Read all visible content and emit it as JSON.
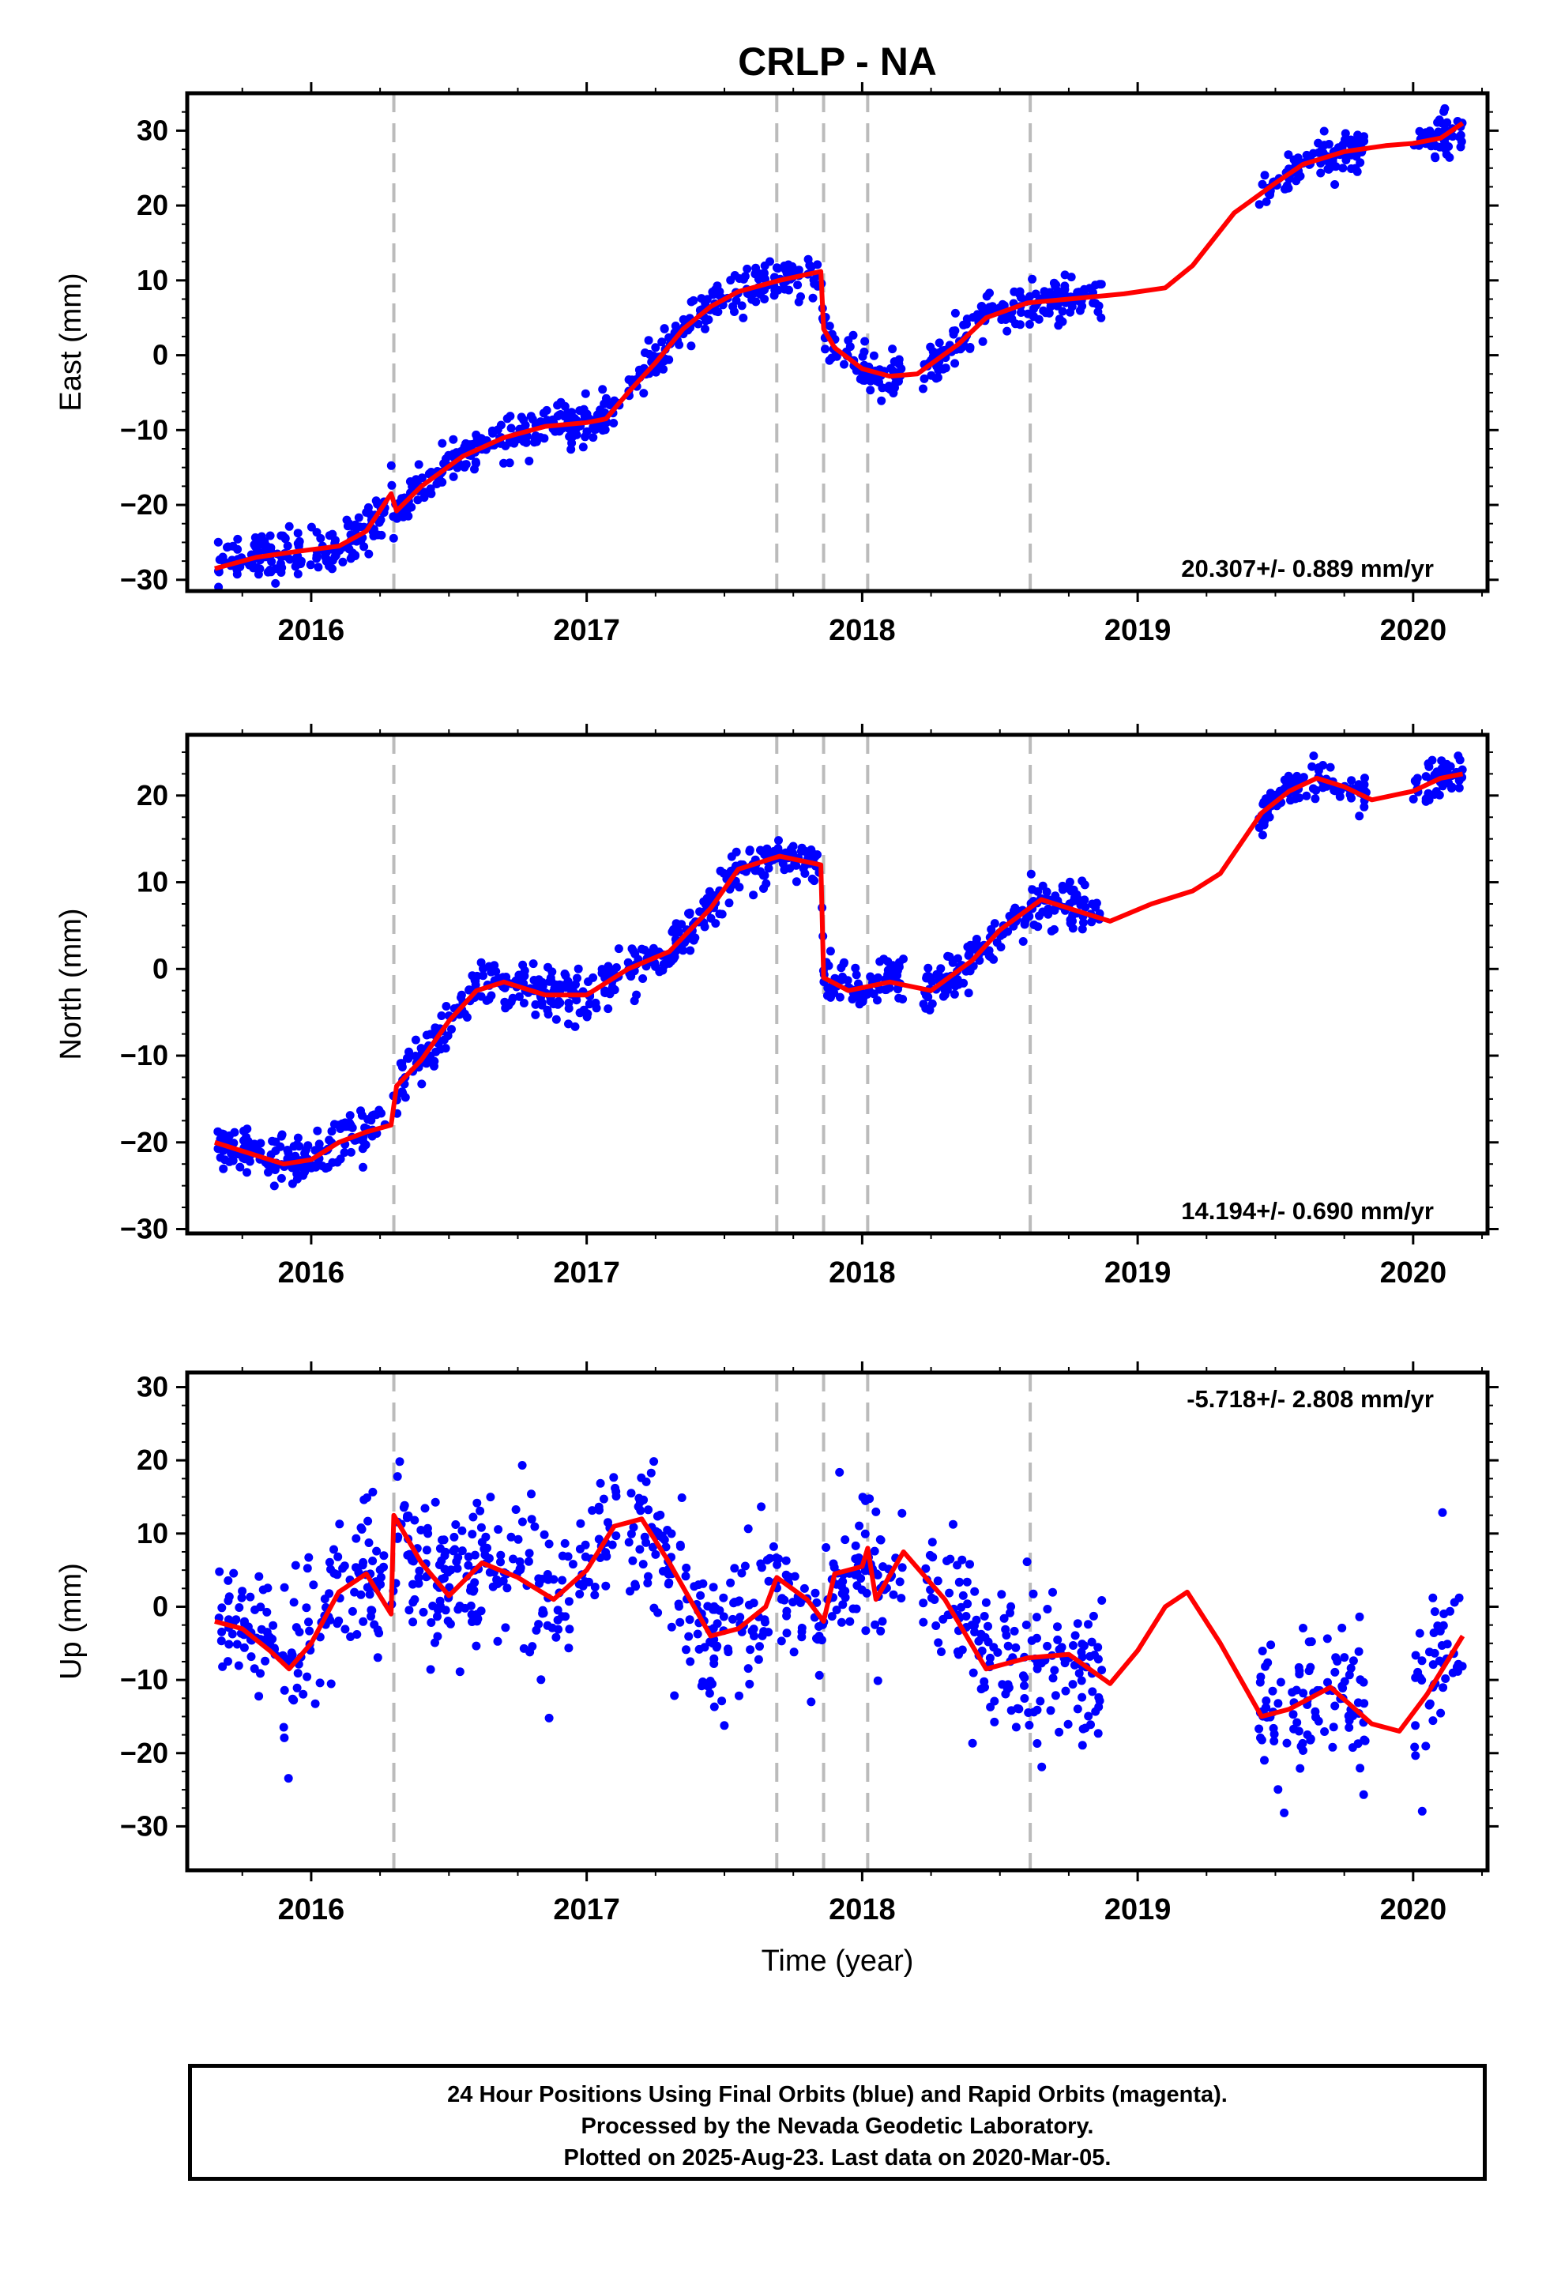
{
  "title": "CRLP - NA",
  "colors": {
    "data_points": "#0000ff",
    "model_line": "#ff0000",
    "event_lines": "#bbbbbb",
    "axis": "#000000"
  },
  "footer": {
    "line1": "24 Hour Positions Using Final Orbits (blue) and Rapid Orbits (magenta).",
    "line2": "Processed by the Nevada Geodetic Laboratory.",
    "line3": "Plotted on 2025-Aug-23. Last data on 2020-Mar-05."
  },
  "chart_data": [
    {
      "type": "scatter",
      "component": "East",
      "ylabel": "East (mm)",
      "xlabel": "",
      "xlim": [
        2015.55,
        2020.27
      ],
      "ylim": [
        -31.5,
        35
      ],
      "xticks": [
        "2016",
        "2017",
        "2018",
        "2019",
        "2020"
      ],
      "yticks": [
        -30,
        -20,
        -10,
        0,
        10,
        20,
        30
      ],
      "rate_label": "20.307+/- 0.889 mm/yr",
      "rate_label_position": "bottom-right",
      "event_lines_x": [
        2016.3,
        2017.69,
        2017.86,
        2018.02,
        2018.61
      ],
      "data_segments": [
        {
          "x": [
            2015.66,
            2016.27
          ],
          "amp": 1.6
        },
        {
          "x": [
            2016.29,
            2017.12
          ],
          "amp": 1.4
        },
        {
          "x": [
            2017.15,
            2017.86
          ],
          "amp": 1.3
        },
        {
          "x": [
            2017.86,
            2018.15
          ],
          "amp": 1.5
        },
        {
          "x": [
            2018.22,
            2018.87
          ],
          "amp": 1.4
        },
        {
          "x": [
            2019.44,
            2019.83
          ],
          "amp": 1.4
        },
        {
          "x": [
            2020.0,
            2020.18
          ],
          "amp": 1.5
        }
      ],
      "model": {
        "x": [
          2015.65,
          2015.8,
          2015.95,
          2016.1,
          2016.2,
          2016.29,
          2016.31,
          2016.4,
          2016.55,
          2016.7,
          2016.85,
          2017.0,
          2017.07,
          2017.15,
          2017.25,
          2017.35,
          2017.45,
          2017.55,
          2017.7,
          2017.85,
          2017.86,
          2017.9,
          2018.0,
          2018.1,
          2018.2,
          2018.35,
          2018.45,
          2018.6,
          2018.75,
          2018.95,
          2019.1,
          2019.2,
          2019.35,
          2019.5,
          2019.6,
          2019.75,
          2019.9,
          2020.0,
          2020.1,
          2020.18
        ],
        "y": [
          -28.5,
          -27,
          -26.2,
          -25.5,
          -23.5,
          -18.5,
          -20.8,
          -17.5,
          -13.5,
          -11,
          -9.5,
          -9,
          -8.5,
          -5,
          -1,
          3.5,
          6.5,
          8.5,
          10,
          11.2,
          3.5,
          1,
          -1.8,
          -2.8,
          -2.5,
          1.5,
          5,
          7,
          7.5,
          8.2,
          9,
          12,
          19,
          23,
          25.5,
          27.2,
          28,
          28.3,
          29,
          31
        ]
      }
    },
    {
      "type": "scatter",
      "component": "North",
      "ylabel": "North (mm)",
      "xlabel": "",
      "xlim": [
        2015.55,
        2020.27
      ],
      "ylim": [
        -30.5,
        27
      ],
      "xticks": [
        "2016",
        "2017",
        "2018",
        "2019",
        "2020"
      ],
      "yticks": [
        -30,
        -20,
        -10,
        0,
        10,
        20
      ],
      "rate_label": "14.194+/- 0.690 mm/yr",
      "rate_label_position": "bottom-right",
      "event_lines_x": [
        2016.3,
        2017.69,
        2017.86,
        2018.02,
        2018.61
      ],
      "data_segments": [
        {
          "x": [
            2015.66,
            2016.27
          ],
          "amp": 1.5
        },
        {
          "x": [
            2016.29,
            2017.12
          ],
          "amp": 1.4
        },
        {
          "x": [
            2017.15,
            2017.86
          ],
          "amp": 1.2
        },
        {
          "x": [
            2017.86,
            2018.15
          ],
          "amp": 1.5
        },
        {
          "x": [
            2018.22,
            2018.87
          ],
          "amp": 1.4
        },
        {
          "x": [
            2019.44,
            2019.83
          ],
          "amp": 1.1
        },
        {
          "x": [
            2020.0,
            2020.18
          ],
          "amp": 1.3
        }
      ],
      "model": {
        "x": [
          2015.65,
          2015.75,
          2015.9,
          2016.0,
          2016.1,
          2016.2,
          2016.29,
          2016.31,
          2016.4,
          2016.5,
          2016.6,
          2016.7,
          2016.85,
          2017.0,
          2017.15,
          2017.3,
          2017.45,
          2017.55,
          2017.7,
          2017.85,
          2017.86,
          2017.95,
          2018.1,
          2018.25,
          2018.4,
          2018.5,
          2018.65,
          2018.8,
          2018.9,
          2019.05,
          2019.2,
          2019.3,
          2019.45,
          2019.55,
          2019.65,
          2019.75,
          2019.85,
          2020.0,
          2020.1,
          2020.18
        ],
        "y": [
          -20,
          -21,
          -22.5,
          -22,
          -20,
          -18.8,
          -18,
          -13.5,
          -10.5,
          -6,
          -2.5,
          -1.5,
          -3,
          -3,
          0,
          2,
          7,
          11.5,
          13,
          12,
          -1,
          -2.5,
          -1.5,
          -2.5,
          1,
          4.5,
          8,
          6.5,
          5.5,
          7.5,
          9,
          11,
          18,
          20.5,
          22,
          21,
          19.5,
          20.5,
          22,
          22.5
        ]
      }
    },
    {
      "type": "scatter",
      "component": "Up",
      "ylabel": "Up (mm)",
      "xlabel": "Time (year)",
      "xlim": [
        2015.55,
        2020.27
      ],
      "ylim": [
        -36,
        32
      ],
      "xticks": [
        "2016",
        "2017",
        "2018",
        "2019",
        "2020"
      ],
      "yticks": [
        -30,
        -20,
        -10,
        0,
        10,
        20,
        30
      ],
      "rate_label": "-5.718+/- 2.808 mm/yr",
      "rate_label_position": "top-right",
      "event_lines_x": [
        2016.3,
        2017.69,
        2017.86,
        2018.02,
        2018.61
      ],
      "data_segments": [
        {
          "x": [
            2015.66,
            2016.27
          ],
          "amp": 5.0
        },
        {
          "x": [
            2016.29,
            2017.12
          ],
          "amp": 5.0
        },
        {
          "x": [
            2017.15,
            2017.86
          ],
          "amp": 5.0
        },
        {
          "x": [
            2017.86,
            2018.15
          ],
          "amp": 5.0
        },
        {
          "x": [
            2018.22,
            2018.87
          ],
          "amp": 5.0
        },
        {
          "x": [
            2019.44,
            2019.83
          ],
          "amp": 5.0
        },
        {
          "x": [
            2020.0,
            2020.18
          ],
          "amp": 6.0
        }
      ],
      "model": {
        "x": [
          2015.65,
          2015.75,
          2015.85,
          2015.92,
          2016.0,
          2016.1,
          2016.2,
          2016.29,
          2016.3,
          2016.4,
          2016.5,
          2016.62,
          2016.75,
          2016.88,
          2017.0,
          2017.1,
          2017.2,
          2017.3,
          2017.45,
          2017.55,
          2017.65,
          2017.69,
          2017.8,
          2017.86,
          2017.9,
          2018.0,
          2018.02,
          2018.05,
          2018.15,
          2018.3,
          2018.45,
          2018.6,
          2018.75,
          2018.9,
          2019.0,
          2019.1,
          2019.18,
          2019.3,
          2019.45,
          2019.55,
          2019.7,
          2019.85,
          2019.95,
          2020.05,
          2020.18
        ],
        "y": [
          -2,
          -3,
          -6,
          -8.5,
          -5,
          2,
          4.5,
          -1,
          12.5,
          6,
          1.5,
          6,
          4,
          1,
          5,
          11,
          12,
          6,
          -4,
          -3,
          0,
          4,
          1,
          -2,
          4.5,
          5.5,
          8,
          1,
          7.5,
          1,
          -8.5,
          -7,
          -6.5,
          -10.5,
          -6,
          0,
          2,
          -5,
          -15,
          -14,
          -11,
          -16,
          -17,
          -12,
          -4
        ]
      }
    }
  ]
}
